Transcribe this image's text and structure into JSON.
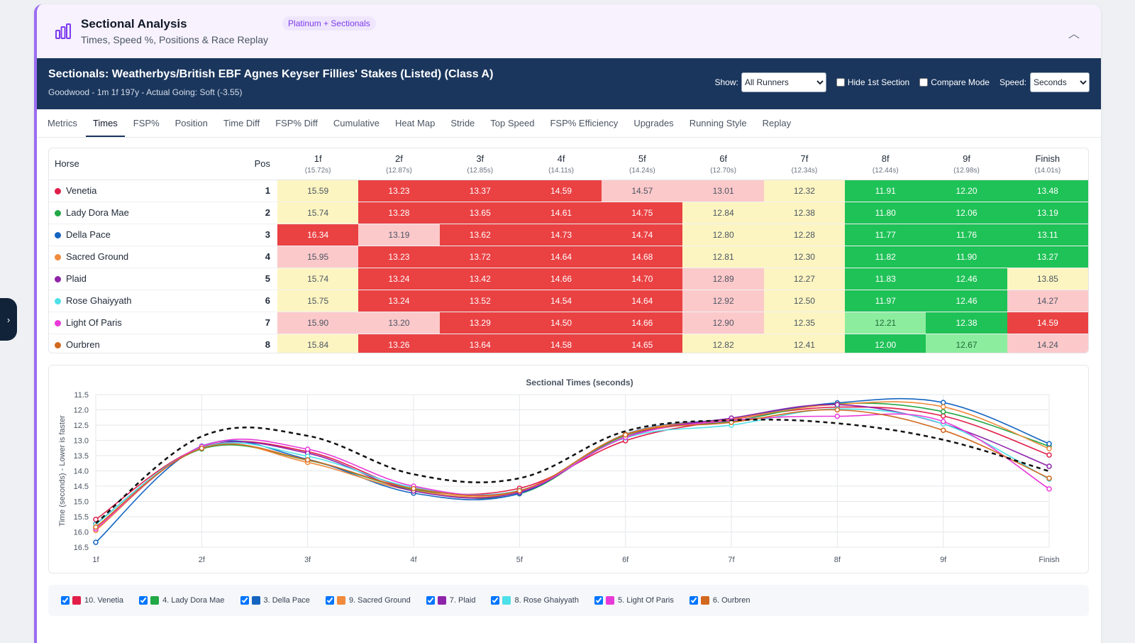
{
  "section": {
    "title": "Sectional Analysis",
    "subtitle": "Times, Speed %, Positions & Race Replay",
    "badge": "Platinum + Sectionals"
  },
  "race": {
    "title": "Sectionals: Weatherbys/British EBF Agnes Keyser Fillies' Stakes (Listed) (Class A)",
    "subtitle": "Goodwood - 1m 1f 197y - Actual Going: Soft (-3.55)",
    "show_label": "Show:",
    "show_value": "All Runners",
    "hide_first_label": "Hide 1st Section",
    "compare_label": "Compare Mode",
    "speed_label": "Speed:",
    "speed_value": "Seconds"
  },
  "tabs": [
    "Metrics",
    "Times",
    "FSP%",
    "Position",
    "Time Diff",
    "FSP% Diff",
    "Cumulative",
    "Heat Map",
    "Stride",
    "Top Speed",
    "FSP% Efficiency",
    "Upgrades",
    "Running Style",
    "Replay"
  ],
  "active_tab": "Times",
  "table": {
    "horse_header": "Horse",
    "pos_header": "Pos",
    "columns": [
      {
        "label": "1f",
        "sub": "(15.72s)"
      },
      {
        "label": "2f",
        "sub": "(12.87s)"
      },
      {
        "label": "3f",
        "sub": "(12.85s)"
      },
      {
        "label": "4f",
        "sub": "(14.11s)"
      },
      {
        "label": "5f",
        "sub": "(14.24s)"
      },
      {
        "label": "6f",
        "sub": "(12.70s)"
      },
      {
        "label": "7f",
        "sub": "(12.34s)"
      },
      {
        "label": "8f",
        "sub": "(12.44s)"
      },
      {
        "label": "9f",
        "sub": "(12.98s)"
      },
      {
        "label": "Finish",
        "sub": "(14.01s)"
      }
    ],
    "rows": [
      {
        "horse": "Venetia",
        "color": "#e11d48",
        "pos": "1",
        "times": [
          "15.59",
          "13.23",
          "13.37",
          "14.59",
          "14.57",
          "13.01",
          "12.32",
          "11.91",
          "12.20",
          "13.48"
        ],
        "cls": [
          "yellow",
          "red",
          "red",
          "red",
          "pink",
          "pink",
          "yellow",
          "green",
          "green",
          "green"
        ]
      },
      {
        "horse": "Lady Dora Mae",
        "color": "#22a845",
        "pos": "2",
        "times": [
          "15.74",
          "13.28",
          "13.65",
          "14.61",
          "14.75",
          "12.84",
          "12.38",
          "11.80",
          "12.06",
          "13.19"
        ],
        "cls": [
          "yellow",
          "red",
          "red",
          "red",
          "red",
          "yellow",
          "yellow",
          "green",
          "green",
          "green"
        ]
      },
      {
        "horse": "Della Pace",
        "color": "#1565c0",
        "pos": "3",
        "times": [
          "16.34",
          "13.19",
          "13.62",
          "14.73",
          "14.74",
          "12.80",
          "12.28",
          "11.77",
          "11.76",
          "13.11"
        ],
        "cls": [
          "red",
          "pink",
          "red",
          "red",
          "red",
          "yellow",
          "yellow",
          "green",
          "green",
          "green"
        ]
      },
      {
        "horse": "Sacred Ground",
        "color": "#f08a3c",
        "pos": "4",
        "times": [
          "15.95",
          "13.23",
          "13.72",
          "14.64",
          "14.68",
          "12.81",
          "12.30",
          "11.82",
          "11.90",
          "13.27"
        ],
        "cls": [
          "pink",
          "red",
          "red",
          "red",
          "red",
          "yellow",
          "yellow",
          "green",
          "green",
          "green"
        ]
      },
      {
        "horse": "Plaid",
        "color": "#8e24aa",
        "pos": "5",
        "times": [
          "15.74",
          "13.24",
          "13.42",
          "14.66",
          "14.70",
          "12.89",
          "12.27",
          "11.83",
          "12.46",
          "13.85"
        ],
        "cls": [
          "yellow",
          "red",
          "red",
          "red",
          "red",
          "pink",
          "yellow",
          "green",
          "green",
          "yellow"
        ]
      },
      {
        "horse": "Rose Ghaiyyath",
        "color": "#4ee0e8",
        "pos": "6",
        "times": [
          "15.75",
          "13.24",
          "13.52",
          "14.54",
          "14.64",
          "12.92",
          "12.50",
          "11.97",
          "12.46",
          "14.27"
        ],
        "cls": [
          "yellow",
          "red",
          "red",
          "red",
          "red",
          "pink",
          "yellow",
          "green",
          "green",
          "pink"
        ]
      },
      {
        "horse": "Light Of Paris",
        "color": "#e83ad8",
        "pos": "7",
        "times": [
          "15.90",
          "13.20",
          "13.29",
          "14.50",
          "14.66",
          "12.90",
          "12.35",
          "12.21",
          "12.38",
          "14.59"
        ],
        "cls": [
          "pink",
          "pink",
          "red",
          "red",
          "red",
          "pink",
          "yellow",
          "lgreen",
          "green",
          "red"
        ]
      },
      {
        "horse": "Ourbren",
        "color": "#d2691e",
        "pos": "8",
        "times": [
          "15.84",
          "13.26",
          "13.64",
          "14.58",
          "14.65",
          "12.82",
          "12.41",
          "12.00",
          "12.67",
          "14.24"
        ],
        "cls": [
          "yellow",
          "red",
          "red",
          "red",
          "red",
          "yellow",
          "yellow",
          "green",
          "lgreen",
          "pink"
        ]
      }
    ]
  },
  "chart_data": {
    "type": "line",
    "title": "Sectional Times (seconds)",
    "ylabel": "Time (seconds) - Lower is faster",
    "xlabel": "",
    "categories": [
      "1f",
      "2f",
      "3f",
      "4f",
      "5f",
      "6f",
      "7f",
      "8f",
      "9f",
      "Finish"
    ],
    "ylim": [
      11.5,
      16.5
    ],
    "y_inverted": true,
    "yticks": [
      "11.5",
      "12.0",
      "12.5",
      "13.0",
      "13.5",
      "14.0",
      "14.5",
      "15.0",
      "15.5",
      "16.0",
      "16.5"
    ],
    "grid": true,
    "series": [
      {
        "name": "10. Venetia",
        "color": "#e11d48",
        "values": [
          15.59,
          13.23,
          13.37,
          14.59,
          14.57,
          13.01,
          12.32,
          11.91,
          12.2,
          13.48
        ]
      },
      {
        "name": "4. Lady Dora Mae",
        "color": "#22a845",
        "values": [
          15.74,
          13.28,
          13.65,
          14.61,
          14.75,
          12.84,
          12.38,
          11.8,
          12.06,
          13.19
        ]
      },
      {
        "name": "3. Della Pace",
        "color": "#1565c0",
        "values": [
          16.34,
          13.19,
          13.62,
          14.73,
          14.74,
          12.8,
          12.28,
          11.77,
          11.76,
          13.11
        ]
      },
      {
        "name": "9. Sacred Ground",
        "color": "#f08a3c",
        "values": [
          15.95,
          13.23,
          13.72,
          14.64,
          14.68,
          12.81,
          12.3,
          11.82,
          11.9,
          13.27
        ]
      },
      {
        "name": "7. Plaid",
        "color": "#8e24aa",
        "values": [
          15.74,
          13.24,
          13.42,
          14.66,
          14.7,
          12.89,
          12.27,
          11.83,
          12.46,
          13.85
        ]
      },
      {
        "name": "8. Rose Ghaiyyath",
        "color": "#4ee0e8",
        "values": [
          15.75,
          13.24,
          13.52,
          14.54,
          14.64,
          12.92,
          12.5,
          11.97,
          12.46,
          14.27
        ]
      },
      {
        "name": "5. Light Of Paris",
        "color": "#e83ad8",
        "values": [
          15.9,
          13.2,
          13.29,
          14.5,
          14.66,
          12.9,
          12.35,
          12.21,
          12.38,
          14.59
        ]
      },
      {
        "name": "6. Ourbren",
        "color": "#d2691e",
        "values": [
          15.84,
          13.26,
          13.64,
          14.58,
          14.65,
          12.82,
          12.41,
          12.0,
          12.67,
          14.24
        ]
      }
    ],
    "standard": {
      "values": [
        15.72,
        12.87,
        12.85,
        14.11,
        14.24,
        12.7,
        12.34,
        12.44,
        12.98,
        14.01
      ],
      "color": "#111111",
      "dash": true
    }
  }
}
